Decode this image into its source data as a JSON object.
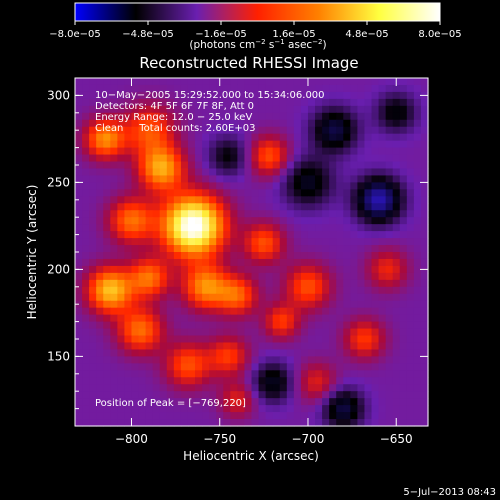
{
  "chart_data": {
    "type": "heatmap",
    "title": "Reconstructed RHESSI Image",
    "xlabel": "Heliocentric X (arcsec)",
    "ylabel": "Heliocentric Y (arcsec)",
    "xlim": [
      -832,
      -632
    ],
    "ylim": [
      110,
      310
    ],
    "xticks": [
      -800,
      -750,
      -700,
      -650
    ],
    "xtick_labels": [
      "−800",
      "−750",
      "−700",
      "−650"
    ],
    "yticks": [
      150,
      200,
      250,
      300
    ],
    "ytick_labels": [
      "150",
      "200",
      "250",
      "300"
    ],
    "colorbar": {
      "range": [
        -8e-05,
        8e-05
      ],
      "tick_values": [
        -8e-05,
        -4.8e-05,
        -1.6e-05,
        1.6e-05,
        4.8e-05,
        8e-05
      ],
      "tick_labels": [
        "−8.0e−05",
        "−4.8e−05",
        "−1.6e−05",
        "1.6e−05",
        "4.8e−05",
        "8.0e−05"
      ],
      "units_parts": [
        "(photons cm",
        "−2",
        " s",
        "−1",
        " asec",
        "−2",
        ")"
      ],
      "colors": [
        "#0000ff",
        "#000000",
        "#6a1fb0",
        "#ff2000",
        "#ff8000",
        "#ffff40",
        "#ffffff"
      ]
    },
    "annotations": [
      "10−May−2005 15:29:52.000 to 15:34:06.000",
      "Detectors: 4F 5F 6F 7F 8F, Att 0",
      "Energy Range: 12.0 − 25.0 keV",
      "Clean     Total counts: 2.60E+03"
    ],
    "peak_label": "Position of Peak = [−769,220]",
    "peak": {
      "x": -769,
      "y": 220
    },
    "date_stamp": "5−Jul−2013 08:43",
    "sources": [
      {
        "x": -765,
        "y": 225,
        "amp": 8e-05,
        "sigma": 12
      },
      {
        "x": -783,
        "y": 258,
        "amp": 4.5e-05,
        "sigma": 9
      },
      {
        "x": -800,
        "y": 228,
        "amp": 3.5e-05,
        "sigma": 9
      },
      {
        "x": -812,
        "y": 188,
        "amp": 5e-05,
        "sigma": 9
      },
      {
        "x": -790,
        "y": 195,
        "amp": 3.5e-05,
        "sigma": 8
      },
      {
        "x": -758,
        "y": 190,
        "amp": 4e-05,
        "sigma": 9
      },
      {
        "x": -740,
        "y": 185,
        "amp": 3.2e-05,
        "sigma": 8
      },
      {
        "x": -725,
        "y": 215,
        "amp": 3e-05,
        "sigma": 8
      },
      {
        "x": -795,
        "y": 165,
        "amp": 3.5e-05,
        "sigma": 9
      },
      {
        "x": -768,
        "y": 145,
        "amp": 3e-05,
        "sigma": 9
      },
      {
        "x": -745,
        "y": 150,
        "amp": 2.6e-05,
        "sigma": 8
      },
      {
        "x": -790,
        "y": 280,
        "amp": 3e-05,
        "sigma": 10
      },
      {
        "x": -815,
        "y": 275,
        "amp": 4e-05,
        "sigma": 8
      },
      {
        "x": -722,
        "y": 265,
        "amp": 3e-05,
        "sigma": 8
      },
      {
        "x": -700,
        "y": 190,
        "amp": 3e-05,
        "sigma": 9
      },
      {
        "x": -715,
        "y": 170,
        "amp": 2.6e-05,
        "sigma": 7
      },
      {
        "x": -668,
        "y": 160,
        "amp": 2.6e-05,
        "sigma": 8
      },
      {
        "x": -655,
        "y": 200,
        "amp": 2.2e-05,
        "sigma": 8
      },
      {
        "x": -695,
        "y": 135,
        "amp": 2e-05,
        "sigma": 8
      },
      {
        "x": -740,
        "y": 125,
        "amp": 2e-05,
        "sigma": 7
      },
      {
        "x": -660,
        "y": 240,
        "amp": -4.5e-05,
        "sigma": 9
      },
      {
        "x": -685,
        "y": 280,
        "amp": -3e-05,
        "sigma": 9
      },
      {
        "x": -700,
        "y": 250,
        "amp": -2.5e-05,
        "sigma": 10
      },
      {
        "x": -650,
        "y": 290,
        "amp": -2.2e-05,
        "sigma": 8
      },
      {
        "x": -680,
        "y": 120,
        "amp": -3e-05,
        "sigma": 8
      },
      {
        "x": -720,
        "y": 135,
        "amp": -2.5e-05,
        "sigma": 8
      },
      {
        "x": -745,
        "y": 265,
        "amp": -2e-05,
        "sigma": 8
      }
    ]
  }
}
